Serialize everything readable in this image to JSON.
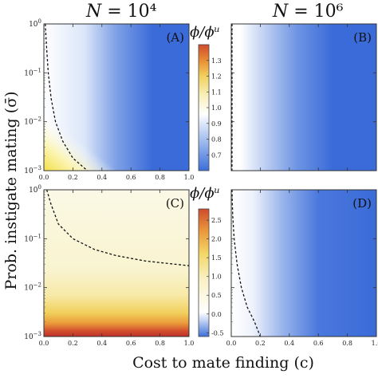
{
  "column_titles": [
    "N = 10^4",
    "N = 10^6"
  ],
  "column_titles_display": [
    "𝑁 = 10⁴",
    "𝑁 = 10⁶"
  ],
  "xlabel": "Cost to mate finding (c)",
  "ylabel": "Prob. instigate mating (σ̄)",
  "colorbar_label": "ϕ/ϕᵘ",
  "colors": {
    "low": "#3a6bd8",
    "neutral": "#ffffff",
    "mid": "#f8f3c8",
    "high1": "#f2d060",
    "high2": "#e87a2c",
    "high3": "#c8382a",
    "curve": "#111111"
  },
  "chart_data": [
    {
      "type": "heatmap",
      "panel": "(A)",
      "title": "N = 10^4",
      "xlim": [
        0.0,
        1.0
      ],
      "ylim": [
        0.001,
        1.0
      ],
      "yscale": "log",
      "xticks": [
        "0.0",
        "0.2",
        "0.4",
        "0.6",
        "0.8",
        "1.0"
      ],
      "yticks": [
        "10^-3",
        "10^-2",
        "10^-1",
        "10^0"
      ],
      "colorbar": {
        "range": [
          0.6,
          1.4
        ],
        "ticks": [
          "0.7",
          "0.8",
          "0.9",
          "1.0",
          "1.1",
          "1.2",
          "1.3"
        ]
      },
      "boundary_curve": [
        [
          0.01,
          1.0
        ],
        [
          0.02,
          0.3
        ],
        [
          0.03,
          0.1
        ],
        [
          0.05,
          0.03
        ],
        [
          0.08,
          0.01
        ],
        [
          0.13,
          0.004
        ],
        [
          0.2,
          0.0018
        ],
        [
          0.3,
          0.001
        ]
      ],
      "description_values": {
        "corner_low_c_low_sigma": 1.3,
        "high_c_region": 0.7
      }
    },
    {
      "type": "heatmap",
      "panel": "(B)",
      "title": "N = 10^6",
      "xlim": [
        0.0,
        1.0
      ],
      "ylim": [
        0.001,
        1.0
      ],
      "yscale": "log",
      "colorbar": {
        "range": [
          0.6,
          1.4
        ]
      },
      "boundary_curve": [
        [
          0.005,
          1.0
        ],
        [
          0.005,
          0.001
        ]
      ],
      "description_values": {
        "high_c_region": 0.7
      }
    },
    {
      "type": "heatmap",
      "panel": "(C)",
      "xlim": [
        0.0,
        1.0
      ],
      "ylim": [
        0.001,
        1.0
      ],
      "yscale": "log",
      "xticks": [
        "0.0",
        "0.2",
        "0.4",
        "0.6",
        "0.8",
        "1.0"
      ],
      "yticks": [
        "10^-3",
        "10^-2",
        "10^-1",
        "10^0"
      ],
      "colorbar": {
        "range": [
          -0.6,
          2.8
        ],
        "ticks": [
          "-0.5",
          "0.0",
          "0.5",
          "1.0",
          "1.5",
          "2.0",
          "2.5"
        ]
      },
      "boundary_curve": [
        [
          0.02,
          1.0
        ],
        [
          0.05,
          0.5
        ],
        [
          0.1,
          0.2
        ],
        [
          0.2,
          0.1
        ],
        [
          0.35,
          0.06
        ],
        [
          0.5,
          0.045
        ],
        [
          0.7,
          0.035
        ],
        [
          1.0,
          0.028
        ]
      ],
      "description_values": {
        "low_sigma_band": 2.7,
        "upper_region": 1.0
      }
    },
    {
      "type": "heatmap",
      "panel": "(D)",
      "xlim": [
        0.0,
        1.0
      ],
      "ylim": [
        0.001,
        1.0
      ],
      "yscale": "log",
      "xticks": [
        "0.0",
        "0.2",
        "0.4",
        "0.6",
        "0.8",
        "1.0"
      ],
      "colorbar": {
        "range": [
          -0.6,
          2.8
        ]
      },
      "boundary_curve": [
        [
          0.005,
          1.0
        ],
        [
          0.01,
          0.3
        ],
        [
          0.02,
          0.1
        ],
        [
          0.04,
          0.03
        ],
        [
          0.07,
          0.01
        ],
        [
          0.11,
          0.004
        ],
        [
          0.16,
          0.002
        ],
        [
          0.2,
          0.001
        ]
      ],
      "description_values": {
        "high_c_region": -0.5
      }
    }
  ]
}
